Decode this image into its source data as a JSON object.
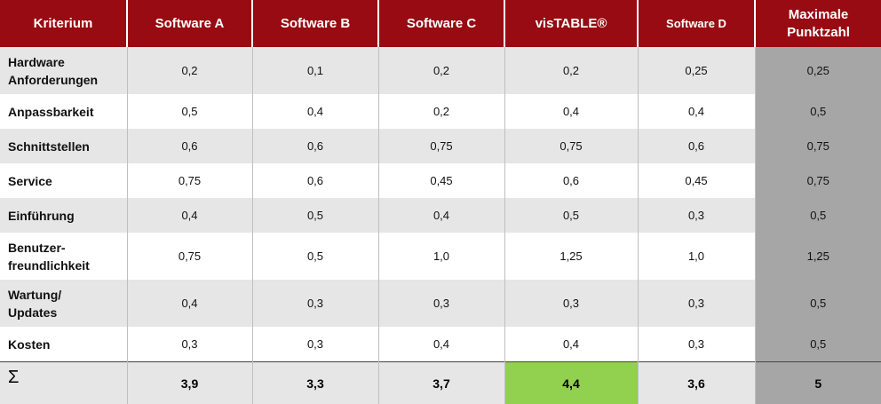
{
  "headers": [
    "Kriterium",
    "Software A",
    "Software B",
    "Software C",
    "visTABLE®",
    "Software D",
    "Maximale Punktzahl"
  ],
  "rows": [
    {
      "criterion_line1": "Hardware",
      "criterion_line2": "Anforderungen",
      "values": [
        "0,2",
        "0,1",
        "0,2",
        "0,2",
        "0,25",
        "0,25"
      ]
    },
    {
      "criterion_line1": "Anpassbarkeit",
      "criterion_line2": "",
      "values": [
        "0,5",
        "0,4",
        "0,2",
        "0,4",
        "0,4",
        "0,5"
      ]
    },
    {
      "criterion_line1": "Schnittstellen",
      "criterion_line2": "",
      "values": [
        "0,6",
        "0,6",
        "0,75",
        "0,75",
        "0,6",
        "0,75"
      ]
    },
    {
      "criterion_line1": "Service",
      "criterion_line2": "",
      "values": [
        "0,75",
        "0,6",
        "0,45",
        "0,6",
        "0,45",
        "0,75"
      ]
    },
    {
      "criterion_line1": "Einführung",
      "criterion_line2": "",
      "values": [
        "0,4",
        "0,5",
        "0,4",
        "0,5",
        "0,3",
        "0,5"
      ]
    },
    {
      "criterion_line1": "Benutzer-",
      "criterion_line2": "freundlichkeit",
      "values": [
        "0,75",
        "0,5",
        "1,0",
        "1,25",
        "1,0",
        "1,25"
      ]
    },
    {
      "criterion_line1": "Wartung/",
      "criterion_line2": "Updates",
      "values": [
        "0,4",
        "0,3",
        "0,3",
        "0,3",
        "0,3",
        "0,5"
      ]
    },
    {
      "criterion_line1": "Kosten",
      "criterion_line2": "",
      "values": [
        "0,3",
        "0,3",
        "0,4",
        "0,4",
        "0,3",
        "0,5"
      ]
    }
  ],
  "totals": {
    "symbol": "Σ",
    "values": [
      "3,9",
      "3,3",
      "3,7",
      "4,4",
      "3,6",
      "5"
    ]
  },
  "colors": {
    "header_bg": "#980b12",
    "winner_bg": "#92d050",
    "max_col_bg": "#a6a6a6",
    "row_alt_bg": "#e6e6e6"
  }
}
